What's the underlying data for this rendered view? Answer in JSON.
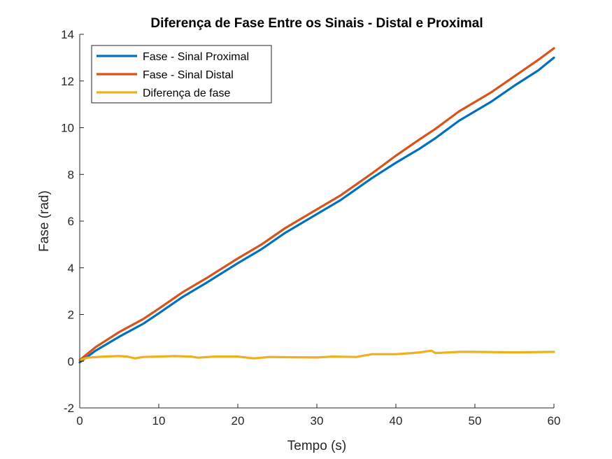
{
  "chart_data": {
    "type": "line",
    "title": "Diferença de Fase Entre os Sinais - Distal e Proximal",
    "xlabel": "Tempo (s)",
    "ylabel": "Fase (rad)",
    "xlim": [
      0,
      60
    ],
    "ylim": [
      -2,
      14
    ],
    "xticks": [
      "0",
      "10",
      "20",
      "30",
      "40",
      "50",
      "60"
    ],
    "yticks": [
      "-2",
      "0",
      "2",
      "4",
      "6",
      "8",
      "10",
      "12",
      "14"
    ],
    "grid": false,
    "legend_position": "top-left",
    "series": [
      {
        "name": "Fase - Sinal Proximal",
        "color": "#0072BD",
        "x": [
          0,
          2,
          5,
          8,
          10,
          13,
          16,
          20,
          23,
          26,
          30,
          33,
          37,
          40,
          43,
          45,
          48,
          52,
          55,
          58,
          60
        ],
        "y": [
          -0.05,
          0.45,
          1.05,
          1.6,
          2.05,
          2.75,
          3.35,
          4.2,
          4.8,
          5.5,
          6.3,
          6.9,
          7.85,
          8.5,
          9.1,
          9.55,
          10.3,
          11.1,
          11.8,
          12.45,
          13.0
        ]
      },
      {
        "name": "Fase - Sinal Distal",
        "color": "#D95319",
        "x": [
          0,
          2,
          5,
          8,
          10,
          13,
          16,
          20,
          23,
          26,
          30,
          33,
          37,
          40,
          43,
          45,
          48,
          52,
          55,
          58,
          60
        ],
        "y": [
          0.05,
          0.6,
          1.25,
          1.8,
          2.25,
          2.95,
          3.55,
          4.4,
          5.0,
          5.7,
          6.5,
          7.1,
          8.05,
          8.8,
          9.5,
          9.95,
          10.7,
          11.5,
          12.2,
          12.9,
          13.4
        ]
      },
      {
        "name": "Diferença de fase",
        "color": "#EDB120",
        "x": [
          0,
          1,
          3,
          5,
          6,
          7,
          8,
          10,
          12,
          14,
          15,
          17,
          20,
          22,
          24,
          27,
          30,
          32,
          35,
          37,
          40,
          42,
          43,
          44.5,
          45,
          48,
          50,
          55,
          60
        ],
        "y": [
          0.05,
          0.15,
          0.2,
          0.22,
          0.2,
          0.12,
          0.18,
          0.2,
          0.22,
          0.2,
          0.15,
          0.2,
          0.2,
          0.12,
          0.18,
          0.17,
          0.16,
          0.2,
          0.18,
          0.3,
          0.3,
          0.35,
          0.38,
          0.45,
          0.35,
          0.4,
          0.4,
          0.38,
          0.4
        ]
      }
    ]
  }
}
